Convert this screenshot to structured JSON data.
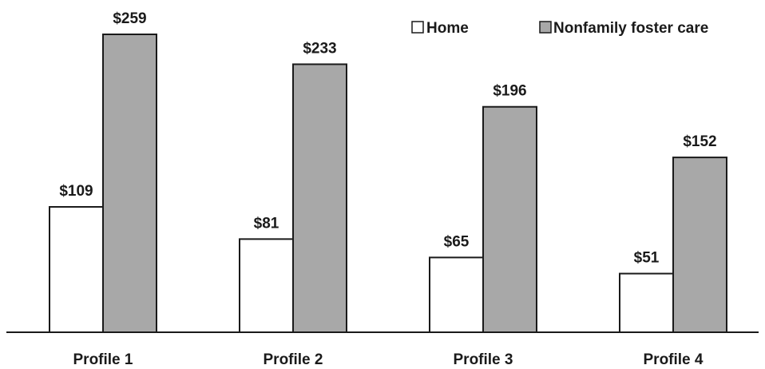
{
  "chart_data": {
    "type": "bar",
    "categories": [
      "Profile 1",
      "Profile 2",
      "Profile 3",
      "Profile 4"
    ],
    "series": [
      {
        "name": "Home",
        "values": [
          109,
          81,
          65,
          51
        ],
        "labels": [
          "$109",
          "$81",
          "$65",
          "$51"
        ],
        "color": "#ffffff"
      },
      {
        "name": "Nonfamily foster care",
        "values": [
          259,
          233,
          196,
          152
        ],
        "labels": [
          "$259",
          "$233",
          "$196",
          "$152"
        ],
        "color": "#a8a8a8"
      }
    ],
    "title": "",
    "xlabel": "",
    "ylabel": "",
    "ylim": [
      0,
      260
    ],
    "grid": false,
    "legend_position": "top-right",
    "bar_outline_color": "#1a1a1a"
  }
}
